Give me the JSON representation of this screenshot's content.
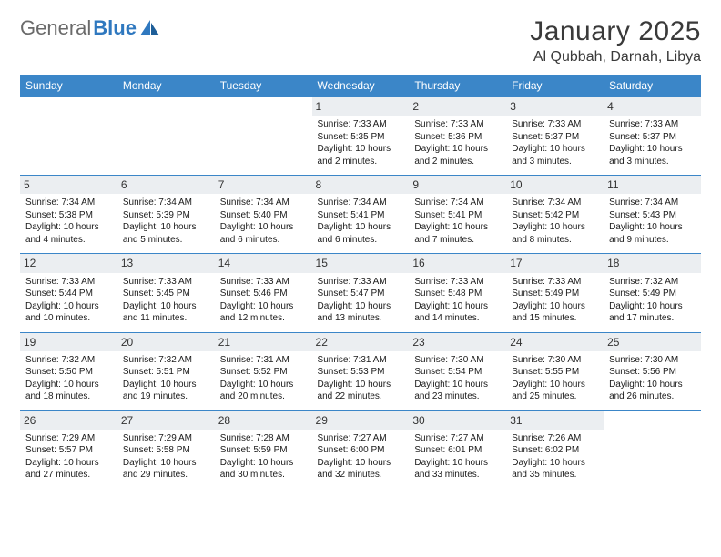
{
  "logo": {
    "part1": "General",
    "part2": "Blue"
  },
  "title": "January 2025",
  "location": "Al Qubbah, Darnah, Libya",
  "colors": {
    "header_bg": "#3b86c8",
    "header_text": "#ffffff",
    "daynum_bg": "#ebeef1",
    "border": "#3b86c8",
    "logo_gray": "#6a6a6a",
    "logo_blue": "#2f78bf",
    "page_bg": "#ffffff"
  },
  "weekdays": [
    "Sunday",
    "Monday",
    "Tuesday",
    "Wednesday",
    "Thursday",
    "Friday",
    "Saturday"
  ],
  "weeks": [
    [
      {
        "n": "",
        "sr": "",
        "ss": "",
        "dl": ""
      },
      {
        "n": "",
        "sr": "",
        "ss": "",
        "dl": ""
      },
      {
        "n": "",
        "sr": "",
        "ss": "",
        "dl": ""
      },
      {
        "n": "1",
        "sr": "Sunrise: 7:33 AM",
        "ss": "Sunset: 5:35 PM",
        "dl": "Daylight: 10 hours and 2 minutes."
      },
      {
        "n": "2",
        "sr": "Sunrise: 7:33 AM",
        "ss": "Sunset: 5:36 PM",
        "dl": "Daylight: 10 hours and 2 minutes."
      },
      {
        "n": "3",
        "sr": "Sunrise: 7:33 AM",
        "ss": "Sunset: 5:37 PM",
        "dl": "Daylight: 10 hours and 3 minutes."
      },
      {
        "n": "4",
        "sr": "Sunrise: 7:33 AM",
        "ss": "Sunset: 5:37 PM",
        "dl": "Daylight: 10 hours and 3 minutes."
      }
    ],
    [
      {
        "n": "5",
        "sr": "Sunrise: 7:34 AM",
        "ss": "Sunset: 5:38 PM",
        "dl": "Daylight: 10 hours and 4 minutes."
      },
      {
        "n": "6",
        "sr": "Sunrise: 7:34 AM",
        "ss": "Sunset: 5:39 PM",
        "dl": "Daylight: 10 hours and 5 minutes."
      },
      {
        "n": "7",
        "sr": "Sunrise: 7:34 AM",
        "ss": "Sunset: 5:40 PM",
        "dl": "Daylight: 10 hours and 6 minutes."
      },
      {
        "n": "8",
        "sr": "Sunrise: 7:34 AM",
        "ss": "Sunset: 5:41 PM",
        "dl": "Daylight: 10 hours and 6 minutes."
      },
      {
        "n": "9",
        "sr": "Sunrise: 7:34 AM",
        "ss": "Sunset: 5:41 PM",
        "dl": "Daylight: 10 hours and 7 minutes."
      },
      {
        "n": "10",
        "sr": "Sunrise: 7:34 AM",
        "ss": "Sunset: 5:42 PM",
        "dl": "Daylight: 10 hours and 8 minutes."
      },
      {
        "n": "11",
        "sr": "Sunrise: 7:34 AM",
        "ss": "Sunset: 5:43 PM",
        "dl": "Daylight: 10 hours and 9 minutes."
      }
    ],
    [
      {
        "n": "12",
        "sr": "Sunrise: 7:33 AM",
        "ss": "Sunset: 5:44 PM",
        "dl": "Daylight: 10 hours and 10 minutes."
      },
      {
        "n": "13",
        "sr": "Sunrise: 7:33 AM",
        "ss": "Sunset: 5:45 PM",
        "dl": "Daylight: 10 hours and 11 minutes."
      },
      {
        "n": "14",
        "sr": "Sunrise: 7:33 AM",
        "ss": "Sunset: 5:46 PM",
        "dl": "Daylight: 10 hours and 12 minutes."
      },
      {
        "n": "15",
        "sr": "Sunrise: 7:33 AM",
        "ss": "Sunset: 5:47 PM",
        "dl": "Daylight: 10 hours and 13 minutes."
      },
      {
        "n": "16",
        "sr": "Sunrise: 7:33 AM",
        "ss": "Sunset: 5:48 PM",
        "dl": "Daylight: 10 hours and 14 minutes."
      },
      {
        "n": "17",
        "sr": "Sunrise: 7:33 AM",
        "ss": "Sunset: 5:49 PM",
        "dl": "Daylight: 10 hours and 15 minutes."
      },
      {
        "n": "18",
        "sr": "Sunrise: 7:32 AM",
        "ss": "Sunset: 5:49 PM",
        "dl": "Daylight: 10 hours and 17 minutes."
      }
    ],
    [
      {
        "n": "19",
        "sr": "Sunrise: 7:32 AM",
        "ss": "Sunset: 5:50 PM",
        "dl": "Daylight: 10 hours and 18 minutes."
      },
      {
        "n": "20",
        "sr": "Sunrise: 7:32 AM",
        "ss": "Sunset: 5:51 PM",
        "dl": "Daylight: 10 hours and 19 minutes."
      },
      {
        "n": "21",
        "sr": "Sunrise: 7:31 AM",
        "ss": "Sunset: 5:52 PM",
        "dl": "Daylight: 10 hours and 20 minutes."
      },
      {
        "n": "22",
        "sr": "Sunrise: 7:31 AM",
        "ss": "Sunset: 5:53 PM",
        "dl": "Daylight: 10 hours and 22 minutes."
      },
      {
        "n": "23",
        "sr": "Sunrise: 7:30 AM",
        "ss": "Sunset: 5:54 PM",
        "dl": "Daylight: 10 hours and 23 minutes."
      },
      {
        "n": "24",
        "sr": "Sunrise: 7:30 AM",
        "ss": "Sunset: 5:55 PM",
        "dl": "Daylight: 10 hours and 25 minutes."
      },
      {
        "n": "25",
        "sr": "Sunrise: 7:30 AM",
        "ss": "Sunset: 5:56 PM",
        "dl": "Daylight: 10 hours and 26 minutes."
      }
    ],
    [
      {
        "n": "26",
        "sr": "Sunrise: 7:29 AM",
        "ss": "Sunset: 5:57 PM",
        "dl": "Daylight: 10 hours and 27 minutes."
      },
      {
        "n": "27",
        "sr": "Sunrise: 7:29 AM",
        "ss": "Sunset: 5:58 PM",
        "dl": "Daylight: 10 hours and 29 minutes."
      },
      {
        "n": "28",
        "sr": "Sunrise: 7:28 AM",
        "ss": "Sunset: 5:59 PM",
        "dl": "Daylight: 10 hours and 30 minutes."
      },
      {
        "n": "29",
        "sr": "Sunrise: 7:27 AM",
        "ss": "Sunset: 6:00 PM",
        "dl": "Daylight: 10 hours and 32 minutes."
      },
      {
        "n": "30",
        "sr": "Sunrise: 7:27 AM",
        "ss": "Sunset: 6:01 PM",
        "dl": "Daylight: 10 hours and 33 minutes."
      },
      {
        "n": "31",
        "sr": "Sunrise: 7:26 AM",
        "ss": "Sunset: 6:02 PM",
        "dl": "Daylight: 10 hours and 35 minutes."
      },
      {
        "n": "",
        "sr": "",
        "ss": "",
        "dl": ""
      }
    ]
  ]
}
